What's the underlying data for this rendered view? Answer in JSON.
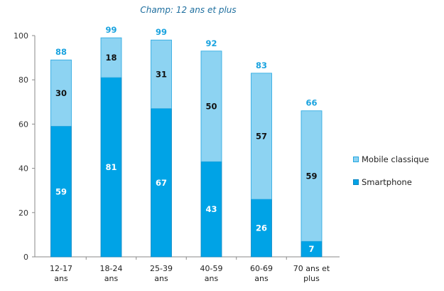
{
  "chart_data": {
    "type": "bar",
    "stacked": true,
    "subtitle": "Champ: 12 ans et plus",
    "categories": [
      "12-17 ans",
      "18-24 ans",
      "25-39 ans",
      "40-59 ans",
      "60-69 ans",
      "70 ans et plus"
    ],
    "category_lines": [
      [
        "12-17",
        "ans"
      ],
      [
        "18-24",
        "ans"
      ],
      [
        "25-39",
        "ans"
      ],
      [
        "40-59",
        "ans"
      ],
      [
        "60-69",
        "ans"
      ],
      [
        "70 ans et",
        "plus"
      ]
    ],
    "series": [
      {
        "name": "Smartphone",
        "values": [
          59,
          81,
          67,
          43,
          26,
          7
        ],
        "color": "#00a3e6",
        "label_color": "#ffffff"
      },
      {
        "name": "Mobile classique",
        "values": [
          30,
          18,
          31,
          50,
          57,
          59
        ],
        "color": "#8dd3f2",
        "label_color": "#111111"
      }
    ],
    "totals": [
      88,
      99,
      99,
      92,
      83,
      66
    ],
    "total_label_color": "#1aa3df",
    "ylim": [
      0,
      100
    ],
    "yticks": [
      0,
      20,
      40,
      60,
      80,
      100
    ],
    "grid": false,
    "legend_position": "right",
    "legend_order": [
      "Mobile classique",
      "Smartphone"
    ]
  }
}
